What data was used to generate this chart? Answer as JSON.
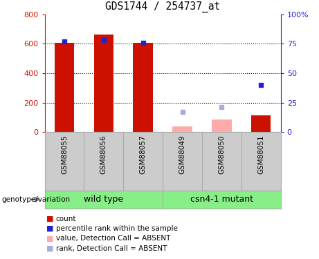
{
  "title": "GDS1744 / 254737_at",
  "categories": [
    "GSM88055",
    "GSM88056",
    "GSM88057",
    "GSM88049",
    "GSM88050",
    "GSM88051"
  ],
  "wild_type_indices": [
    0,
    1,
    2
  ],
  "mutant_indices": [
    3,
    4,
    5
  ],
  "wild_type_label": "wild type",
  "mutant_label": "csn4-1 mutant",
  "genotype_label": "genotype/variation",
  "bar_color_present": "#cc1100",
  "bar_color_absent": "#ffaaaa",
  "dot_color_present": "#2222cc",
  "dot_color_absent": "#aaaadd",
  "ylim_left": [
    0,
    800
  ],
  "ylim_right": [
    0,
    100
  ],
  "yticks_left": [
    0,
    200,
    400,
    600,
    800
  ],
  "yticks_right": [
    0,
    25,
    50,
    75,
    100
  ],
  "yticklabels_right": [
    "0",
    "25",
    "50",
    "75",
    "100%"
  ],
  "yticklabels_left": [
    "0",
    "200",
    "400",
    "600",
    "800"
  ],
  "bar_heights_present": [
    605,
    660,
    605,
    null,
    null,
    115
  ],
  "bar_heights_absent": [
    null,
    null,
    null,
    40,
    85,
    null
  ],
  "dot_present": [
    77,
    78,
    76,
    null,
    null,
    null
  ],
  "dot_absent": [
    null,
    null,
    null,
    17,
    21,
    null
  ],
  "dot_present_6th": 40,
  "background_color": "#ffffff",
  "gray_bg_color": "#cccccc",
  "green_bg_color": "#88ee88",
  "legend_items": [
    "count",
    "percentile rank within the sample",
    "value, Detection Call = ABSENT",
    "rank, Detection Call = ABSENT"
  ],
  "grid_dotted_at": [
    200,
    400,
    600
  ],
  "bar_width": 0.5
}
